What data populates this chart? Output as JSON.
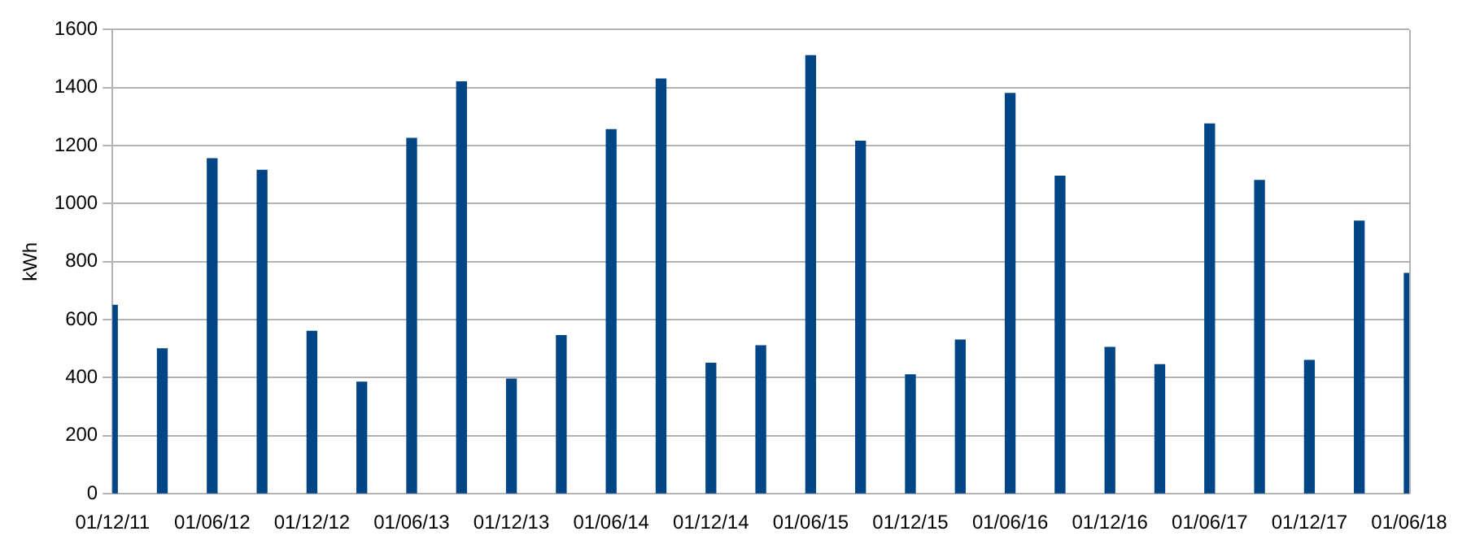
{
  "chart_data": {
    "type": "bar",
    "ylabel": "kWh",
    "categories": [
      "01/12/11",
      null,
      "01/06/12",
      null,
      "01/12/12",
      null,
      "01/06/13",
      null,
      "01/12/13",
      null,
      "01/06/14",
      null,
      "01/12/14",
      null,
      "01/06/15",
      null,
      "01/12/15",
      null,
      "01/06/16",
      null,
      "01/12/16",
      null,
      "01/06/17",
      null,
      "01/12/17",
      null,
      "01/06/18"
    ],
    "values": [
      650,
      500,
      1155,
      1115,
      560,
      385,
      1225,
      1420,
      395,
      545,
      1255,
      1430,
      450,
      510,
      1510,
      1215,
      410,
      530,
      1380,
      1095,
      505,
      445,
      1275,
      1080,
      460,
      940,
      760
    ],
    "color": "#004586",
    "ylim": [
      0,
      1600
    ],
    "yticks": [
      0,
      200,
      400,
      600,
      800,
      1000,
      1200,
      1400,
      1600
    ],
    "grid": "y",
    "legend": false
  }
}
